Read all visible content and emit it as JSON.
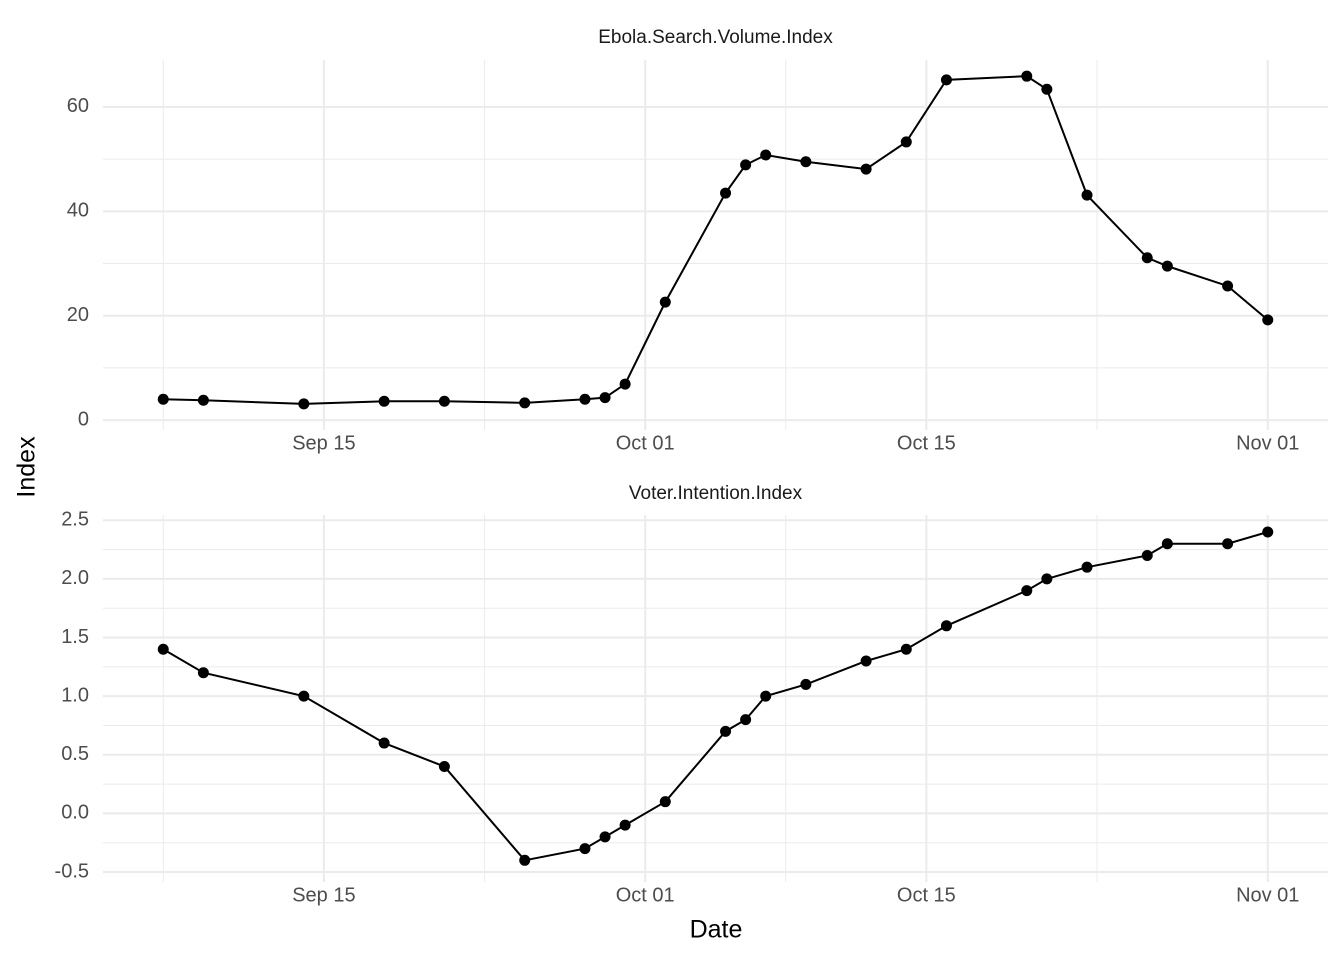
{
  "xlabel": "Date",
  "ylabel": "Index",
  "chart_data": [
    {
      "type": "line",
      "title": "Ebola.Search.Volume.Index",
      "grid": true,
      "color": "#000000",
      "x": [
        "Sep 07",
        "Sep 09",
        "Sep 14",
        "Sep 18",
        "Sep 21",
        "Sep 25",
        "Sep 28",
        "Sep 29",
        "Sep 30",
        "Oct 02",
        "Oct 05",
        "Oct 06",
        "Oct 07",
        "Oct 09",
        "Oct 12",
        "Oct 14",
        "Oct 16",
        "Oct 20",
        "Oct 21",
        "Oct 23",
        "Oct 26",
        "Oct 27",
        "Oct 30",
        "Nov 01"
      ],
      "values": [
        4.0,
        3.8,
        3.1,
        3.6,
        3.6,
        3.3,
        4.0,
        4.3,
        6.9,
        22.6,
        43.5,
        48.9,
        50.8,
        49.5,
        48.1,
        53.3,
        65.2,
        65.9,
        63.4,
        43.1,
        31.1,
        29.5,
        25.7,
        19.2
      ],
      "xlim": [
        "Sep 04",
        "Nov 04"
      ],
      "xticks": [
        "Sep 15",
        "Oct 01",
        "Oct 15",
        "Nov 01"
      ],
      "ylim": [
        -1.9,
        69
      ],
      "yticks": [
        0,
        20,
        40,
        60
      ]
    },
    {
      "type": "line",
      "title": "Voter.Intention.Index",
      "grid": true,
      "color": "#000000",
      "x": [
        "Sep 07",
        "Sep 09",
        "Sep 14",
        "Sep 18",
        "Sep 21",
        "Sep 25",
        "Sep 28",
        "Sep 29",
        "Sep 30",
        "Oct 02",
        "Oct 05",
        "Oct 06",
        "Oct 07",
        "Oct 09",
        "Oct 12",
        "Oct 14",
        "Oct 16",
        "Oct 20",
        "Oct 21",
        "Oct 23",
        "Oct 26",
        "Oct 27",
        "Oct 30",
        "Nov 01"
      ],
      "values": [
        1.4,
        1.2,
        1.0,
        0.6,
        0.4,
        -0.4,
        -0.3,
        -0.2,
        -0.1,
        0.1,
        0.7,
        0.8,
        1.0,
        1.1,
        1.3,
        1.4,
        1.6,
        1.9,
        2.0,
        2.1,
        2.2,
        2.3,
        2.3,
        2.4
      ],
      "xlim": [
        "Sep 04",
        "Nov 04"
      ],
      "xticks": [
        "Sep 15",
        "Oct 01",
        "Oct 15",
        "Nov 01"
      ],
      "ylim": [
        -0.585,
        2.545
      ],
      "yticks": [
        -0.5,
        {
          "value": 0,
          "label": "0.0"
        },
        0.5,
        {
          "value": 1,
          "label": "1.0"
        },
        1.5,
        {
          "value": 2,
          "label": "2.0"
        },
        2.5
      ]
    }
  ]
}
